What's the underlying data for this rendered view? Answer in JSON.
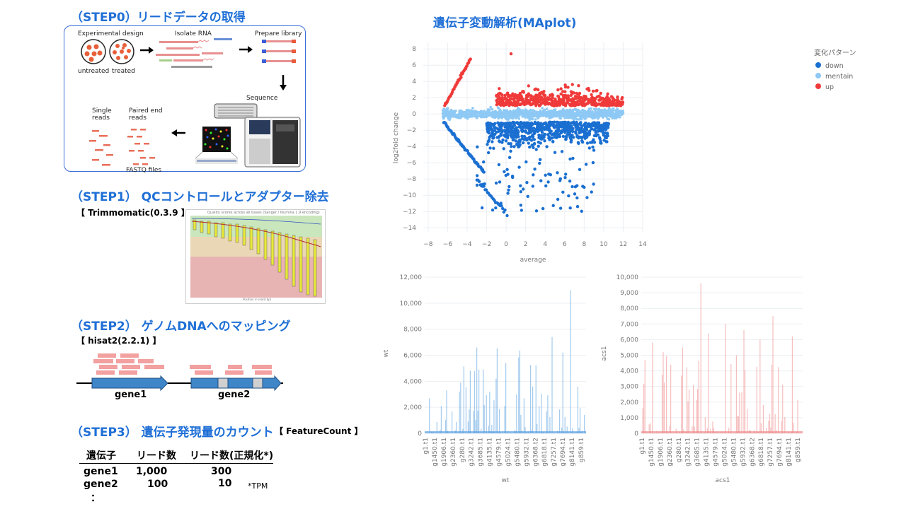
{
  "step0": {
    "title": "（STEP0）リードデータの取得",
    "experimental_design": "Experimental design",
    "untreated": "untreated",
    "treated": "treated",
    "isolate_rna": "Isolate RNA",
    "prepare_library": "Prepare library",
    "sequence": "Sequence",
    "single_reads": "Single\nreads",
    "paired_reads": "Paired end\nreads",
    "fastq": "FASTQ files"
  },
  "step1": {
    "title": "（STEP1） QCコントロールとアダプター除去",
    "tool": "【 Trimmomatic(0.3.9 】",
    "qc_caption": "Quality scores across all bases (Sanger / Illumina 1.9 encoding)",
    "qc_xlabel": "Position in read (bp)"
  },
  "step2": {
    "title": "（STEP2） ゲノムDNAへのマッピング",
    "tool": "【 hisat2(2.2.1) 】",
    "gene1": "gene1",
    "gene2": "gene2"
  },
  "step3": {
    "title": "（STEP3） 遺伝子発現量のカウント",
    "tool": "【 FeatureCount 】",
    "table": {
      "headers": [
        "遺伝子",
        "リード数",
        "リード数(正規化*)"
      ],
      "rows": [
        [
          "gene1",
          "1,000",
          "300"
        ],
        [
          "gene2",
          "100",
          "10"
        ],
        [
          "：",
          "",
          ""
        ]
      ]
    },
    "note": "*TPM"
  },
  "maplot": {
    "title": "遺伝子変動解析(MAplot)",
    "legend_title": "変化パターン",
    "legend": [
      {
        "label": "down",
        "color": "#1a6fd1"
      },
      {
        "label": "mentain",
        "color": "#8ec9f5"
      },
      {
        "label": "up",
        "color": "#f03a3a"
      }
    ],
    "xlabel": "average",
    "ylabel": "log2fold change",
    "xticks": [
      "−8",
      "−6",
      "−4",
      "−2",
      "0",
      "2",
      "4",
      "6",
      "8",
      "10",
      "12",
      "14"
    ],
    "yticks": [
      "8",
      "6",
      "4",
      "2",
      "0",
      "−2",
      "−4",
      "−6",
      "−8",
      "−10",
      "−12",
      "−14"
    ]
  },
  "bar_wt": {
    "xlabel": "wt",
    "ylabel": "wt",
    "yticks": [
      "12,000",
      "10,000",
      "8,000",
      "6,000",
      "4,000",
      "2,000",
      "0"
    ],
    "xticks": [
      "g1.t1",
      "g1450.t1",
      "g1906.t1",
      "g2360.t1",
      "g280.t1",
      "g3242.t1",
      "g3685.t1",
      "g4135.t1",
      "g4579.t1",
      "g5024.t1",
      "g5480.t1",
      "g5932.t1",
      "g6368.t2",
      "g6818.t1",
      "g7257.t1",
      "g7694.t1",
      "g8141.t1",
      "g859.t1"
    ]
  },
  "bar_acs1": {
    "xlabel": "acs1",
    "ylabel": "acs1",
    "yticks": [
      "10,000",
      "9,000",
      "8,000",
      "7,000",
      "6,000",
      "5,000",
      "4,000",
      "3,000",
      "2,000",
      "1,000",
      "0"
    ],
    "xticks": [
      "g1.t1",
      "g1450.t1",
      "g1906.t1",
      "g2360.t1",
      "g280.t1",
      "g3242.t1",
      "g3685.t1",
      "g4135.t1",
      "g4579.t1",
      "g5024.t1",
      "g5480.t1",
      "g5932.t1",
      "g6368.t2",
      "g6818.t1",
      "g7257.t1",
      "g7694.t1",
      "g8141.t1",
      "g859.t1"
    ]
  }
}
